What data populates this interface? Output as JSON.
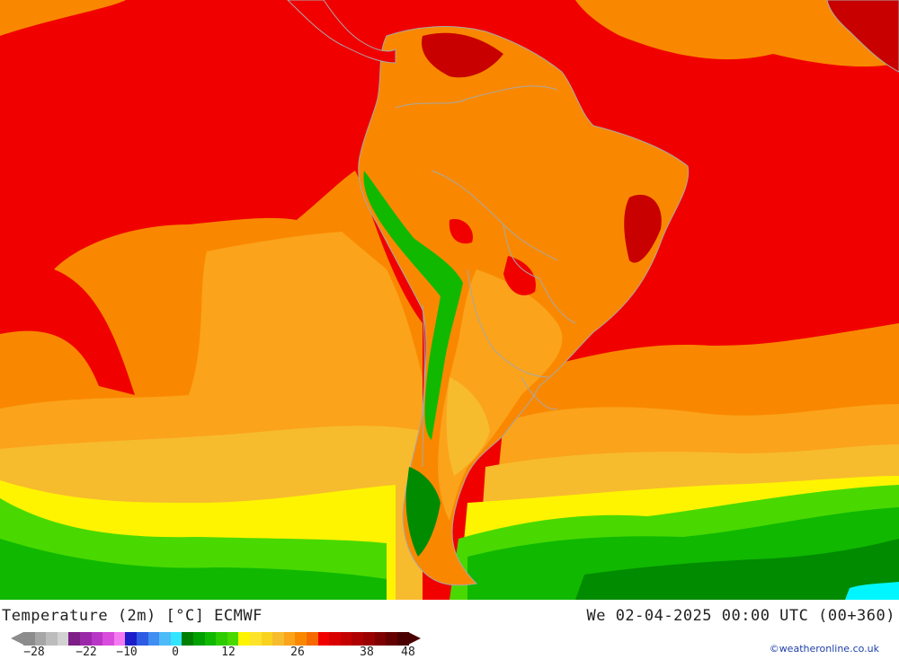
{
  "map": {
    "title": "Temperature (2m) [°C] ECMWF",
    "valid_time": "We 02-04-2025 00:00 UTC (00+360)",
    "credit": "©weatheronline.co.uk",
    "colors": {
      "hot_red": "#f10000",
      "dark_red": "#c80000",
      "orange": "#f98800",
      "light_orange": "#fba31b",
      "amber": "#f7bb2e",
      "yellow": "#fff400",
      "lime": "#49d900",
      "green": "#10b800",
      "dark_green": "#008b00",
      "cyan": "#00f6ff",
      "border": "#a8a8a8"
    }
  },
  "legend": {
    "colors": [
      "#8c8c8c",
      "#a6a6a6",
      "#bcbcbc",
      "#d2d2d2",
      "#7d1f86",
      "#9b28a8",
      "#b736c6",
      "#d84bdc",
      "#f47af2",
      "#1c1cc9",
      "#2e5be3",
      "#3f8ef2",
      "#4dbbf8",
      "#33e4ff",
      "#007e00",
      "#00a000",
      "#10b800",
      "#2ccc00",
      "#49d900",
      "#fff400",
      "#fde32a",
      "#f9d21f",
      "#f7bb2e",
      "#fba31b",
      "#f98800",
      "#f56900",
      "#f10000",
      "#d90000",
      "#c40000",
      "#ae0000",
      "#990000",
      "#7f0000",
      "#640000",
      "#4a0000"
    ],
    "ticks": [
      "-28",
      "-22",
      "-10",
      "0",
      "12",
      "26",
      "38",
      "48"
    ]
  }
}
